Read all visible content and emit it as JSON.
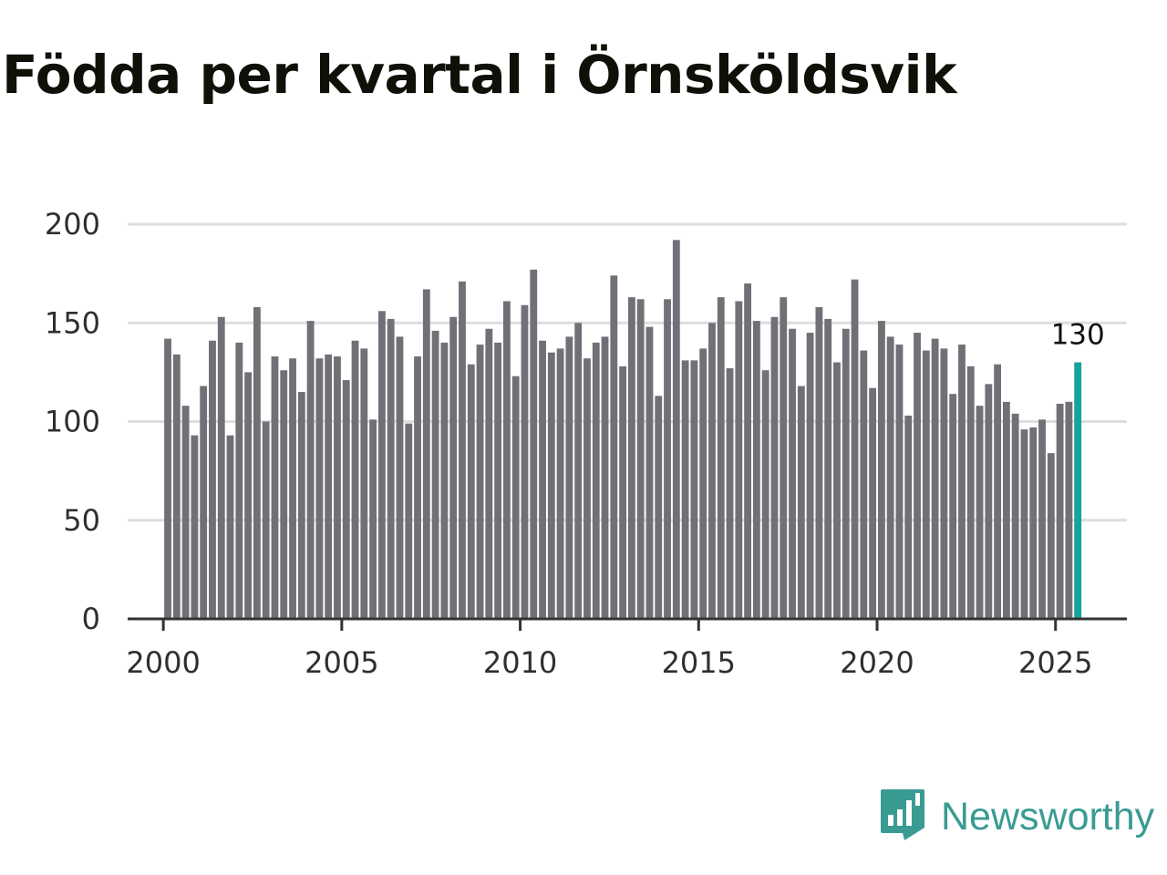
{
  "brand": {
    "name": "Newsworthy",
    "icon": "newsworthy-logo-icon",
    "color": "#3a9b93"
  },
  "colors": {
    "bar": "#717077",
    "highlight": "#16a39a",
    "grid": "#dedede",
    "axis": "#333333"
  },
  "chart_data": {
    "type": "bar",
    "title": "Födda per kvartal i Örnsköldsvik",
    "xlabel": "",
    "ylabel": "",
    "ylim": [
      0,
      200
    ],
    "yticks": [
      0,
      50,
      100,
      150,
      200
    ],
    "xlim": [
      1999.0,
      2027.0
    ],
    "xticks": [
      2000,
      2005,
      2010,
      2015,
      2020,
      2025
    ],
    "grid": true,
    "start_year": 2000,
    "highlight_last": true,
    "last_value_label": "130",
    "values": [
      142,
      134,
      108,
      93,
      118,
      141,
      153,
      93,
      140,
      125,
      158,
      100,
      133,
      126,
      132,
      115,
      151,
      132,
      134,
      133,
      121,
      141,
      137,
      101,
      156,
      152,
      143,
      99,
      133,
      167,
      146,
      140,
      153,
      171,
      129,
      139,
      147,
      140,
      161,
      123,
      159,
      177,
      141,
      135,
      137,
      143,
      150,
      132,
      140,
      143,
      174,
      128,
      163,
      162,
      148,
      113,
      162,
      192,
      131,
      131,
      137,
      150,
      163,
      127,
      161,
      170,
      151,
      126,
      153,
      163,
      147,
      118,
      145,
      158,
      152,
      130,
      147,
      172,
      136,
      117,
      151,
      143,
      139,
      103,
      145,
      136,
      142,
      137,
      114,
      139,
      128,
      108,
      119,
      129,
      110,
      104,
      96,
      97,
      101,
      84,
      109,
      110,
      130
    ]
  }
}
